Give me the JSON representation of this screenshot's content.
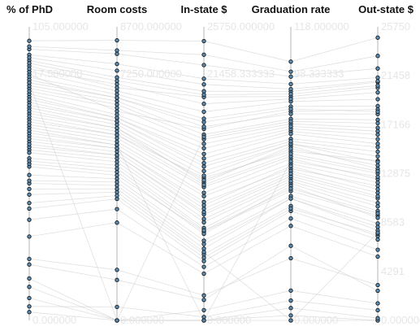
{
  "chart_data": {
    "type": "parallel_coordinates",
    "title": "",
    "colors": {
      "polyline": "#c6c6c6",
      "axis": "#d0d0d0",
      "point_fill": "#5a8fb8",
      "point_stroke": "#1a1a1a",
      "tick_text": "#e6e6e6",
      "title_text": "#111111"
    },
    "axes": [
      {
        "key": "phd",
        "title": "% of PhD",
        "range": [
          0,
          105
        ],
        "tick_labels": [
          "105.000000",
          "17.500000",
          "0.000000"
        ]
      },
      {
        "key": "room",
        "title": "Room costs",
        "range": [
          0,
          8700
        ],
        "tick_labels": [
          "8700.000000",
          "7250.000000",
          "0.000000"
        ]
      },
      {
        "key": "instate",
        "title": "In-state $",
        "range": [
          0,
          25750
        ],
        "tick_labels": [
          "25750.000000",
          "21458.333333",
          "0.000000"
        ]
      },
      {
        "key": "grad",
        "title": "Graduation rate",
        "range": [
          0,
          118
        ],
        "tick_labels": [
          "118.000000",
          "98.333333",
          "0.000000"
        ]
      },
      {
        "key": "outstate",
        "title": "Out-state $",
        "range": [
          0,
          25750
        ],
        "tick_labels": [
          "25750",
          "21458",
          "17166",
          "12875",
          "8583",
          "4291",
          "0.000000"
        ]
      }
    ],
    "records": [
      [
        72,
        5500,
        12500,
        68,
        14000
      ],
      [
        88,
        6200,
        16800,
        84,
        18500
      ],
      [
        55,
        4300,
        7800,
        52,
        9200
      ],
      [
        91,
        6900,
        19600,
        90,
        20400
      ],
      [
        40,
        3600,
        5200,
        44,
        7100
      ],
      [
        78,
        5900,
        13800,
        73,
        15200
      ],
      [
        66,
        5100,
        10400,
        61,
        11800
      ],
      [
        95,
        7600,
        21200,
        95,
        21300
      ],
      [
        30,
        2900,
        4100,
        38,
        5600
      ],
      [
        83,
        6400,
        15900,
        79,
        16900
      ],
      [
        61,
        4800,
        8900,
        57,
        10300
      ],
      [
        74,
        5700,
        12100,
        70,
        13300
      ],
      [
        49,
        4000,
        6300,
        49,
        7900
      ],
      [
        87,
        6700,
        17700,
        86,
        18800
      ],
      [
        69,
        5300,
        11200,
        65,
        12400
      ],
      [
        93,
        7200,
        20100,
        92,
        20900
      ],
      [
        58,
        4600,
        8100,
        55,
        9600
      ],
      [
        80,
        6000,
        14600,
        76,
        15900
      ],
      [
        36,
        3300,
        4700,
        41,
        6200
      ],
      [
        76,
        5800,
        13100,
        71,
        14400
      ],
      [
        64,
        5000,
        9800,
        60,
        11200
      ],
      [
        89,
        6800,
        18300,
        88,
        19400
      ],
      [
        52,
        4200,
        7000,
        50,
        8500
      ],
      [
        84,
        6500,
        16300,
        81,
        17600
      ],
      [
        70,
        5400,
        11700,
        66,
        12900
      ],
      [
        97,
        7900,
        22400,
        98,
        22100
      ],
      [
        45,
        3800,
        5800,
        46,
        7400
      ],
      [
        81,
        6100,
        15100,
        77,
        16300
      ],
      [
        62,
        4900,
        9300,
        58,
        10700
      ],
      [
        75,
        5700,
        12700,
        71,
        13900
      ],
      [
        15,
        0,
        0,
        0,
        0
      ],
      [
        22,
        1500,
        2200,
        25,
        3100
      ],
      [
        8,
        0,
        900,
        12,
        1500
      ],
      [
        100,
        8300,
        24500,
        104,
        24800
      ],
      [
        98,
        8000,
        23300,
        100,
        23200
      ],
      [
        3,
        0,
        0,
        2,
        0
      ],
      [
        67,
        5200,
        10900,
        63,
        12100
      ],
      [
        79,
        6000,
        14200,
        75,
        15500
      ],
      [
        56,
        4400,
        7600,
        54,
        9000
      ],
      [
        85,
        6600,
        17000,
        83,
        18100
      ],
      [
        42,
        3700,
        5500,
        45,
        7600
      ],
      [
        73,
        5600,
        12300,
        69,
        13600
      ],
      [
        90,
        7000,
        19000,
        89,
        20000
      ],
      [
        60,
        4700,
        8600,
        56,
        10000
      ],
      [
        77,
        5900,
        13500,
        72,
        14800
      ],
      [
        94,
        7400,
        20700,
        93,
        21000
      ],
      [
        50,
        4100,
        6700,
        49,
        8200
      ],
      [
        82,
        6300,
        15500,
        78,
        16600
      ],
      [
        65,
        5100,
        10100,
        62,
        11500
      ],
      [
        86,
        6600,
        17400,
        85,
        18300
      ],
      [
        20,
        1200,
        1800,
        30,
        2600
      ],
      [
        5,
        400,
        300,
        8,
        900
      ],
      [
        12,
        0,
        0,
        5,
        200
      ],
      [
        71,
        5500,
        11900,
        67,
        13100
      ],
      [
        92,
        7100,
        19800,
        91,
        20600
      ],
      [
        57,
        4500,
        7900,
        53,
        9400
      ],
      [
        63,
        4900,
        9500,
        59,
        10900
      ],
      [
        85,
        0,
        16100,
        80,
        17300
      ],
      [
        68,
        5200,
        0,
        64,
        12600
      ],
      [
        47,
        3900,
        6000,
        0,
        7700
      ]
    ]
  }
}
